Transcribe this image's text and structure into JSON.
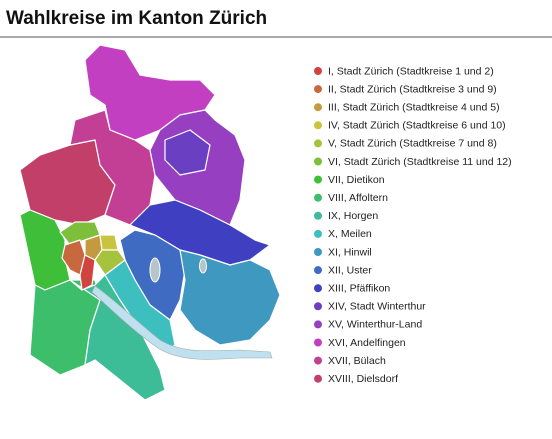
{
  "title": "Wahlkreise im Kanton Zürich",
  "legend": [
    {
      "label": "I, Stadt Zürich (Stadtkreise 1 und 2)",
      "color": "#d0433f"
    },
    {
      "label": "II, Stadt Zürich (Stadtkreise 3 und 9)",
      "color": "#c8683f"
    },
    {
      "label": "III, Stadt Zürich (Stadtkreise 4 und 5)",
      "color": "#c49a3e"
    },
    {
      "label": "IV, Stadt Zürich (Stadtkreise 6 und 10)",
      "color": "#c8c43d"
    },
    {
      "label": "V, Stadt Zürich (Stadtkreise 7 und 8)",
      "color": "#a7c23c"
    },
    {
      "label": "VI, Stadt Zürich (Stadtkreise 11 und 12)",
      "color": "#7dbf3b"
    },
    {
      "label": "VII, Dietikon",
      "color": "#3fbe3a"
    },
    {
      "label": "VIII, Affoltern",
      "color": "#3dbe6b"
    },
    {
      "label": "IX, Horgen",
      "color": "#3dbd97"
    },
    {
      "label": "X, Meilen",
      "color": "#3dbfbf"
    },
    {
      "label": "XI, Hinwil",
      "color": "#3e98c0"
    },
    {
      "label": "XII, Uster",
      "color": "#3f6cc2"
    },
    {
      "label": "XIII, Pfäffikon",
      "color": "#3f3fc2"
    },
    {
      "label": "XIV, Stadt Winterthur",
      "color": "#6b3fc2"
    },
    {
      "label": "XV, Winterthur-Land",
      "color": "#963fc1"
    },
    {
      "label": "XVI, Andelfingen",
      "color": "#c23fc2"
    },
    {
      "label": "XVII, Bülach",
      "color": "#c23f95"
    },
    {
      "label": "XVIII, Dielsdorf",
      "color": "#c23f6a"
    }
  ]
}
